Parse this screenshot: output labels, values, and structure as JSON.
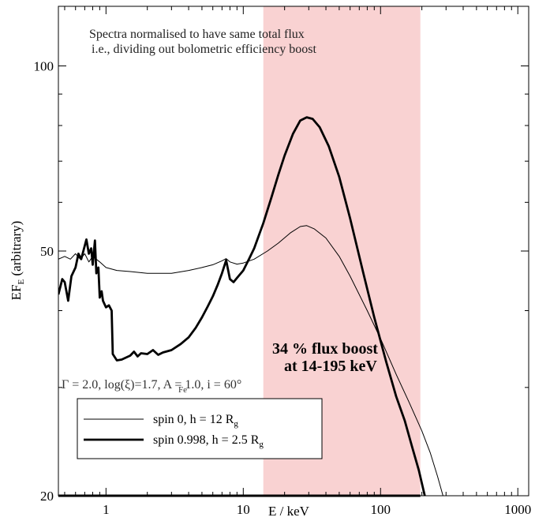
{
  "chart_data": {
    "type": "line",
    "xlabel": "E / keV",
    "ylabel": "EF",
    "ylabel_sub": "E",
    "ylabel_tail": " (arbitrary)",
    "xscale": "log",
    "yscale": "log",
    "xlim": [
      0.45,
      1200
    ],
    "ylim": [
      20,
      125
    ],
    "x_ticks": [
      {
        "value": 1,
        "label": "1"
      },
      {
        "value": 10,
        "label": "10"
      },
      {
        "value": 100,
        "label": "100"
      },
      {
        "value": 1000,
        "label": "1000"
      }
    ],
    "y_ticks": [
      {
        "value": 20,
        "label": "20"
      },
      {
        "value": 50,
        "label": "50"
      },
      {
        "value": 100,
        "label": "100"
      }
    ],
    "shaded_band": {
      "x": [
        14,
        195
      ],
      "color": "#f9d2d2"
    },
    "annotations": {
      "line1": "Spectra normalised to have same total flux",
      "line2": "i.e., dividing out bolometric efficiency boost",
      "boost1": "34 % flux boost",
      "boost2": "at 14-195 keV",
      "params": "Γ = 2.0, log(ξ)=1.7, A    = 1.0, i = 60°",
      "params_sub": "Fe"
    },
    "series": [
      {
        "name": "spin 0, h = 12 R",
        "name_sub": "g",
        "line_width": 1,
        "color": "#000000",
        "points": [
          [
            0.45,
            48.5
          ],
          [
            0.5,
            49.0
          ],
          [
            0.55,
            48.5
          ],
          [
            0.6,
            49.5
          ],
          [
            0.65,
            48.5
          ],
          [
            0.7,
            49.5
          ],
          [
            0.75,
            48.0
          ],
          [
            0.8,
            49.0
          ],
          [
            0.9,
            48.0
          ],
          [
            1.0,
            47.0
          ],
          [
            1.2,
            46.5
          ],
          [
            1.5,
            46.3
          ],
          [
            2.0,
            46.0
          ],
          [
            3.0,
            46.0
          ],
          [
            4.0,
            46.5
          ],
          [
            5.0,
            47.0
          ],
          [
            6.0,
            47.5
          ],
          [
            7.0,
            48.2
          ],
          [
            7.5,
            48.6
          ],
          [
            8.0,
            48.0
          ],
          [
            9.0,
            47.6
          ],
          [
            10.0,
            47.8
          ],
          [
            12.0,
            48.5
          ],
          [
            15.0,
            50.0
          ],
          [
            18.0,
            51.5
          ],
          [
            22.0,
            53.5
          ],
          [
            26.0,
            54.8
          ],
          [
            29.0,
            55.0
          ],
          [
            33.0,
            54.3
          ],
          [
            40.0,
            52.5
          ],
          [
            50.0,
            49.0
          ],
          [
            60.0,
            45.5
          ],
          [
            80.0,
            40.0
          ],
          [
            100.0,
            36.0
          ],
          [
            130.0,
            31.5
          ],
          [
            160.0,
            28.5
          ],
          [
            200.0,
            25.5
          ],
          [
            230.0,
            23.5
          ],
          [
            260.0,
            21.5
          ],
          [
            285.0,
            20.0
          ]
        ]
      },
      {
        "name": "spin 0.998, h = 2.5 R",
        "name_sub": "g",
        "line_width": 2.8,
        "color": "#000000",
        "points": [
          [
            0.45,
            42.5
          ],
          [
            0.48,
            45.0
          ],
          [
            0.5,
            44.5
          ],
          [
            0.53,
            41.5
          ],
          [
            0.56,
            45.5
          ],
          [
            0.6,
            47.0
          ],
          [
            0.63,
            49.5
          ],
          [
            0.66,
            48.5
          ],
          [
            0.7,
            51.0
          ],
          [
            0.72,
            52.2
          ],
          [
            0.75,
            49.5
          ],
          [
            0.78,
            50.5
          ],
          [
            0.8,
            47.5
          ],
          [
            0.83,
            52.0
          ],
          [
            0.85,
            46.0
          ],
          [
            0.88,
            47.0
          ],
          [
            0.9,
            42.0
          ],
          [
            0.93,
            43.0
          ],
          [
            0.95,
            41.5
          ],
          [
            1.0,
            40.5
          ],
          [
            1.05,
            40.8
          ],
          [
            1.1,
            40.0
          ],
          [
            1.12,
            34.0
          ],
          [
            1.2,
            33.2
          ],
          [
            1.3,
            33.3
          ],
          [
            1.5,
            33.8
          ],
          [
            1.6,
            34.3
          ],
          [
            1.7,
            33.7
          ],
          [
            1.8,
            34.1
          ],
          [
            2.0,
            34.0
          ],
          [
            2.2,
            34.5
          ],
          [
            2.4,
            33.9
          ],
          [
            2.6,
            34.2
          ],
          [
            3.0,
            34.5
          ],
          [
            3.5,
            35.3
          ],
          [
            4.0,
            36.2
          ],
          [
            4.5,
            37.5
          ],
          [
            5.0,
            39.0
          ],
          [
            5.5,
            40.6
          ],
          [
            6.0,
            42.2
          ],
          [
            6.5,
            44.0
          ],
          [
            7.0,
            46.0
          ],
          [
            7.5,
            48.3
          ],
          [
            8.0,
            45.0
          ],
          [
            8.5,
            44.5
          ],
          [
            9.0,
            45.2
          ],
          [
            10.0,
            46.5
          ],
          [
            11.0,
            48.5
          ],
          [
            12.0,
            50.5
          ],
          [
            14.0,
            55.5
          ],
          [
            16.0,
            61.0
          ],
          [
            18.0,
            66.5
          ],
          [
            20.0,
            71.5
          ],
          [
            23.0,
            77.5
          ],
          [
            26.0,
            81.5
          ],
          [
            29.0,
            82.5
          ],
          [
            32.0,
            82.0
          ],
          [
            36.0,
            79.5
          ],
          [
            42.0,
            74.0
          ],
          [
            50.0,
            66.0
          ],
          [
            60.0,
            56.5
          ],
          [
            75.0,
            46.0
          ],
          [
            90.0,
            39.0
          ],
          [
            110.0,
            33.0
          ],
          [
            130.0,
            29.0
          ],
          [
            150.0,
            26.5
          ],
          [
            170.0,
            24.0
          ],
          [
            190.0,
            22.0
          ],
          [
            210.0,
            20.0
          ]
        ]
      }
    ],
    "legend": {
      "placement": "bottom-left"
    }
  }
}
